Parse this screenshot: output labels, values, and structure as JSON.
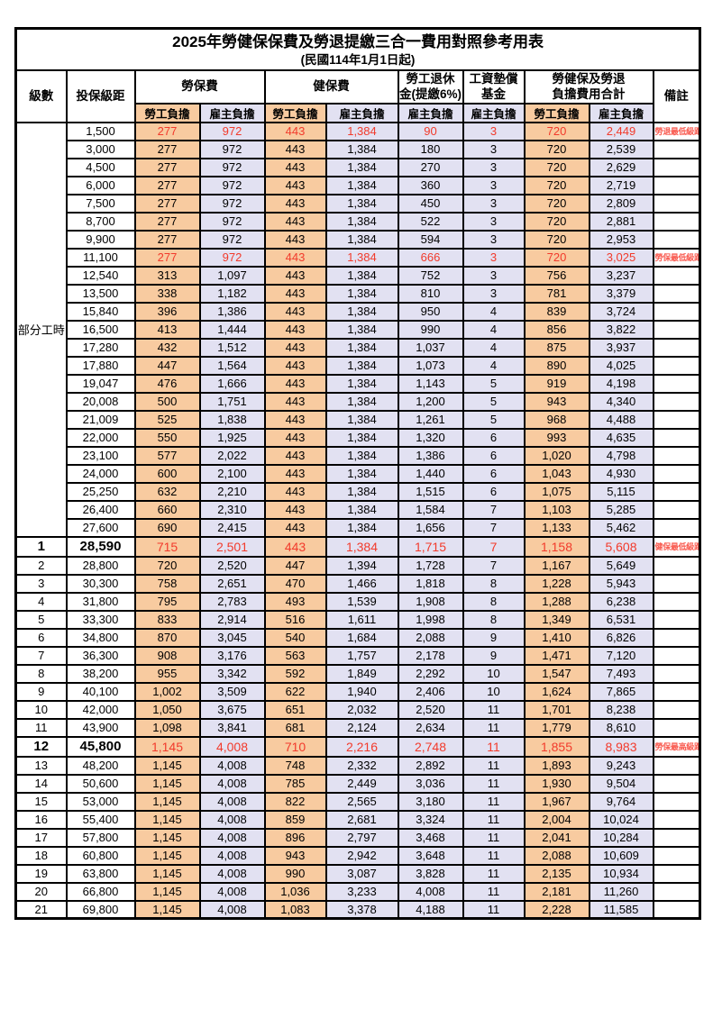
{
  "title": "2025年勞健保保費及勞退提繳三合一費用對照參考用表",
  "subtitle": "(民國114年1月1日起)",
  "columns": {
    "level": "級數",
    "bracket": "投保級距",
    "labor_group": "勞保費",
    "health_group": "健保費",
    "pension_line1": "勞工退休",
    "pension_line2": "金(提繳6%)",
    "wage_fund_line1": "工資墊償",
    "wage_fund_line2": "基金",
    "total_line1": "勞健保及勞退",
    "total_line2": "負擔費用合計",
    "remark": "備註",
    "employee": "勞工負擔",
    "employer": "雇主負擔"
  },
  "part_time": {
    "label": "部分工時",
    "span": 23
  },
  "colors": {
    "employee_bg": "#F8CBA0",
    "employer_bg": "#E2E1F2",
    "highlight_text": "#f23a2b",
    "remark_text": "#f9594e",
    "border": "#000000"
  },
  "rows": [
    {
      "level": "",
      "bracket": "1,500",
      "v": [
        "277",
        "972",
        "443",
        "1,384",
        "90",
        "3",
        "720",
        "2,449"
      ],
      "remark": "勞退最低級距",
      "hl": true,
      "big": false
    },
    {
      "level": "",
      "bracket": "3,000",
      "v": [
        "277",
        "972",
        "443",
        "1,384",
        "180",
        "3",
        "720",
        "2,539"
      ],
      "remark": "",
      "hl": false,
      "big": false
    },
    {
      "level": "",
      "bracket": "4,500",
      "v": [
        "277",
        "972",
        "443",
        "1,384",
        "270",
        "3",
        "720",
        "2,629"
      ],
      "remark": "",
      "hl": false,
      "big": false
    },
    {
      "level": "",
      "bracket": "6,000",
      "v": [
        "277",
        "972",
        "443",
        "1,384",
        "360",
        "3",
        "720",
        "2,719"
      ],
      "remark": "",
      "hl": false,
      "big": false
    },
    {
      "level": "",
      "bracket": "7,500",
      "v": [
        "277",
        "972",
        "443",
        "1,384",
        "450",
        "3",
        "720",
        "2,809"
      ],
      "remark": "",
      "hl": false,
      "big": false
    },
    {
      "level": "",
      "bracket": "8,700",
      "v": [
        "277",
        "972",
        "443",
        "1,384",
        "522",
        "3",
        "720",
        "2,881"
      ],
      "remark": "",
      "hl": false,
      "big": false
    },
    {
      "level": "",
      "bracket": "9,900",
      "v": [
        "277",
        "972",
        "443",
        "1,384",
        "594",
        "3",
        "720",
        "2,953"
      ],
      "remark": "",
      "hl": false,
      "big": false
    },
    {
      "level": "",
      "bracket": "11,100",
      "v": [
        "277",
        "972",
        "443",
        "1,384",
        "666",
        "3",
        "720",
        "3,025"
      ],
      "remark": "勞保最低級距",
      "hl": true,
      "big": false
    },
    {
      "level": "",
      "bracket": "12,540",
      "v": [
        "313",
        "1,097",
        "443",
        "1,384",
        "752",
        "3",
        "756",
        "3,237"
      ],
      "remark": "",
      "hl": false,
      "big": false
    },
    {
      "level": "",
      "bracket": "13,500",
      "v": [
        "338",
        "1,182",
        "443",
        "1,384",
        "810",
        "3",
        "781",
        "3,379"
      ],
      "remark": "",
      "hl": false,
      "big": false
    },
    {
      "level": "",
      "bracket": "15,840",
      "v": [
        "396",
        "1,386",
        "443",
        "1,384",
        "950",
        "4",
        "839",
        "3,724"
      ],
      "remark": "",
      "hl": false,
      "big": false
    },
    {
      "level": "",
      "bracket": "16,500",
      "v": [
        "413",
        "1,444",
        "443",
        "1,384",
        "990",
        "4",
        "856",
        "3,822"
      ],
      "remark": "",
      "hl": false,
      "big": false
    },
    {
      "level": "",
      "bracket": "17,280",
      "v": [
        "432",
        "1,512",
        "443",
        "1,384",
        "1,037",
        "4",
        "875",
        "3,937"
      ],
      "remark": "",
      "hl": false,
      "big": false
    },
    {
      "level": "",
      "bracket": "17,880",
      "v": [
        "447",
        "1,564",
        "443",
        "1,384",
        "1,073",
        "4",
        "890",
        "4,025"
      ],
      "remark": "",
      "hl": false,
      "big": false
    },
    {
      "level": "",
      "bracket": "19,047",
      "v": [
        "476",
        "1,666",
        "443",
        "1,384",
        "1,143",
        "5",
        "919",
        "4,198"
      ],
      "remark": "",
      "hl": false,
      "big": false
    },
    {
      "level": "",
      "bracket": "20,008",
      "v": [
        "500",
        "1,751",
        "443",
        "1,384",
        "1,200",
        "5",
        "943",
        "4,340"
      ],
      "remark": "",
      "hl": false,
      "big": false
    },
    {
      "level": "",
      "bracket": "21,009",
      "v": [
        "525",
        "1,838",
        "443",
        "1,384",
        "1,261",
        "5",
        "968",
        "4,488"
      ],
      "remark": "",
      "hl": false,
      "big": false
    },
    {
      "level": "",
      "bracket": "22,000",
      "v": [
        "550",
        "1,925",
        "443",
        "1,384",
        "1,320",
        "6",
        "993",
        "4,635"
      ],
      "remark": "",
      "hl": false,
      "big": false
    },
    {
      "level": "",
      "bracket": "23,100",
      "v": [
        "577",
        "2,022",
        "443",
        "1,384",
        "1,386",
        "6",
        "1,020",
        "4,798"
      ],
      "remark": "",
      "hl": false,
      "big": false
    },
    {
      "level": "",
      "bracket": "24,000",
      "v": [
        "600",
        "2,100",
        "443",
        "1,384",
        "1,440",
        "6",
        "1,043",
        "4,930"
      ],
      "remark": "",
      "hl": false,
      "big": false
    },
    {
      "level": "",
      "bracket": "25,250",
      "v": [
        "632",
        "2,210",
        "443",
        "1,384",
        "1,515",
        "6",
        "1,075",
        "5,115"
      ],
      "remark": "",
      "hl": false,
      "big": false
    },
    {
      "level": "",
      "bracket": "26,400",
      "v": [
        "660",
        "2,310",
        "443",
        "1,384",
        "1,584",
        "7",
        "1,103",
        "5,285"
      ],
      "remark": "",
      "hl": false,
      "big": false
    },
    {
      "level": "",
      "bracket": "27,600",
      "v": [
        "690",
        "2,415",
        "443",
        "1,384",
        "1,656",
        "7",
        "1,133",
        "5,462"
      ],
      "remark": "",
      "hl": false,
      "big": false
    },
    {
      "level": "1",
      "bracket": "28,590",
      "v": [
        "715",
        "2,501",
        "443",
        "1,384",
        "1,715",
        "7",
        "1,158",
        "5,608"
      ],
      "remark": "健保最低級距",
      "hl": true,
      "big": true
    },
    {
      "level": "2",
      "bracket": "28,800",
      "v": [
        "720",
        "2,520",
        "447",
        "1,394",
        "1,728",
        "7",
        "1,167",
        "5,649"
      ],
      "remark": "",
      "hl": false,
      "big": false
    },
    {
      "level": "3",
      "bracket": "30,300",
      "v": [
        "758",
        "2,651",
        "470",
        "1,466",
        "1,818",
        "8",
        "1,228",
        "5,943"
      ],
      "remark": "",
      "hl": false,
      "big": false
    },
    {
      "level": "4",
      "bracket": "31,800",
      "v": [
        "795",
        "2,783",
        "493",
        "1,539",
        "1,908",
        "8",
        "1,288",
        "6,238"
      ],
      "remark": "",
      "hl": false,
      "big": false
    },
    {
      "level": "5",
      "bracket": "33,300",
      "v": [
        "833",
        "2,914",
        "516",
        "1,611",
        "1,998",
        "8",
        "1,349",
        "6,531"
      ],
      "remark": "",
      "hl": false,
      "big": false
    },
    {
      "level": "6",
      "bracket": "34,800",
      "v": [
        "870",
        "3,045",
        "540",
        "1,684",
        "2,088",
        "9",
        "1,410",
        "6,826"
      ],
      "remark": "",
      "hl": false,
      "big": false
    },
    {
      "level": "7",
      "bracket": "36,300",
      "v": [
        "908",
        "3,176",
        "563",
        "1,757",
        "2,178",
        "9",
        "1,471",
        "7,120"
      ],
      "remark": "",
      "hl": false,
      "big": false
    },
    {
      "level": "8",
      "bracket": "38,200",
      "v": [
        "955",
        "3,342",
        "592",
        "1,849",
        "2,292",
        "10",
        "1,547",
        "7,493"
      ],
      "remark": "",
      "hl": false,
      "big": false
    },
    {
      "level": "9",
      "bracket": "40,100",
      "v": [
        "1,002",
        "3,509",
        "622",
        "1,940",
        "2,406",
        "10",
        "1,624",
        "7,865"
      ],
      "remark": "",
      "hl": false,
      "big": false
    },
    {
      "level": "10",
      "bracket": "42,000",
      "v": [
        "1,050",
        "3,675",
        "651",
        "2,032",
        "2,520",
        "11",
        "1,701",
        "8,238"
      ],
      "remark": "",
      "hl": false,
      "big": false
    },
    {
      "level": "11",
      "bracket": "43,900",
      "v": [
        "1,098",
        "3,841",
        "681",
        "2,124",
        "2,634",
        "11",
        "1,779",
        "8,610"
      ],
      "remark": "",
      "hl": false,
      "big": false
    },
    {
      "level": "12",
      "bracket": "45,800",
      "v": [
        "1,145",
        "4,008",
        "710",
        "2,216",
        "2,748",
        "11",
        "1,855",
        "8,983"
      ],
      "remark": "勞保最高級距",
      "hl": true,
      "big": true
    },
    {
      "level": "13",
      "bracket": "48,200",
      "v": [
        "1,145",
        "4,008",
        "748",
        "2,332",
        "2,892",
        "11",
        "1,893",
        "9,243"
      ],
      "remark": "",
      "hl": false,
      "big": false
    },
    {
      "level": "14",
      "bracket": "50,600",
      "v": [
        "1,145",
        "4,008",
        "785",
        "2,449",
        "3,036",
        "11",
        "1,930",
        "9,504"
      ],
      "remark": "",
      "hl": false,
      "big": false
    },
    {
      "level": "15",
      "bracket": "53,000",
      "v": [
        "1,145",
        "4,008",
        "822",
        "2,565",
        "3,180",
        "11",
        "1,967",
        "9,764"
      ],
      "remark": "",
      "hl": false,
      "big": false
    },
    {
      "level": "16",
      "bracket": "55,400",
      "v": [
        "1,145",
        "4,008",
        "859",
        "2,681",
        "3,324",
        "11",
        "2,004",
        "10,024"
      ],
      "remark": "",
      "hl": false,
      "big": false
    },
    {
      "level": "17",
      "bracket": "57,800",
      "v": [
        "1,145",
        "4,008",
        "896",
        "2,797",
        "3,468",
        "11",
        "2,041",
        "10,284"
      ],
      "remark": "",
      "hl": false,
      "big": false
    },
    {
      "level": "18",
      "bracket": "60,800",
      "v": [
        "1,145",
        "4,008",
        "943",
        "2,942",
        "3,648",
        "11",
        "2,088",
        "10,609"
      ],
      "remark": "",
      "hl": false,
      "big": false
    },
    {
      "level": "19",
      "bracket": "63,800",
      "v": [
        "1,145",
        "4,008",
        "990",
        "3,087",
        "3,828",
        "11",
        "2,135",
        "10,934"
      ],
      "remark": "",
      "hl": false,
      "big": false
    },
    {
      "level": "20",
      "bracket": "66,800",
      "v": [
        "1,145",
        "4,008",
        "1,036",
        "3,233",
        "4,008",
        "11",
        "2,181",
        "11,260"
      ],
      "remark": "",
      "hl": false,
      "big": false
    },
    {
      "level": "21",
      "bracket": "69,800",
      "v": [
        "1,145",
        "4,008",
        "1,083",
        "3,378",
        "4,188",
        "11",
        "2,228",
        "11,585"
      ],
      "remark": "",
      "hl": false,
      "big": false
    }
  ]
}
